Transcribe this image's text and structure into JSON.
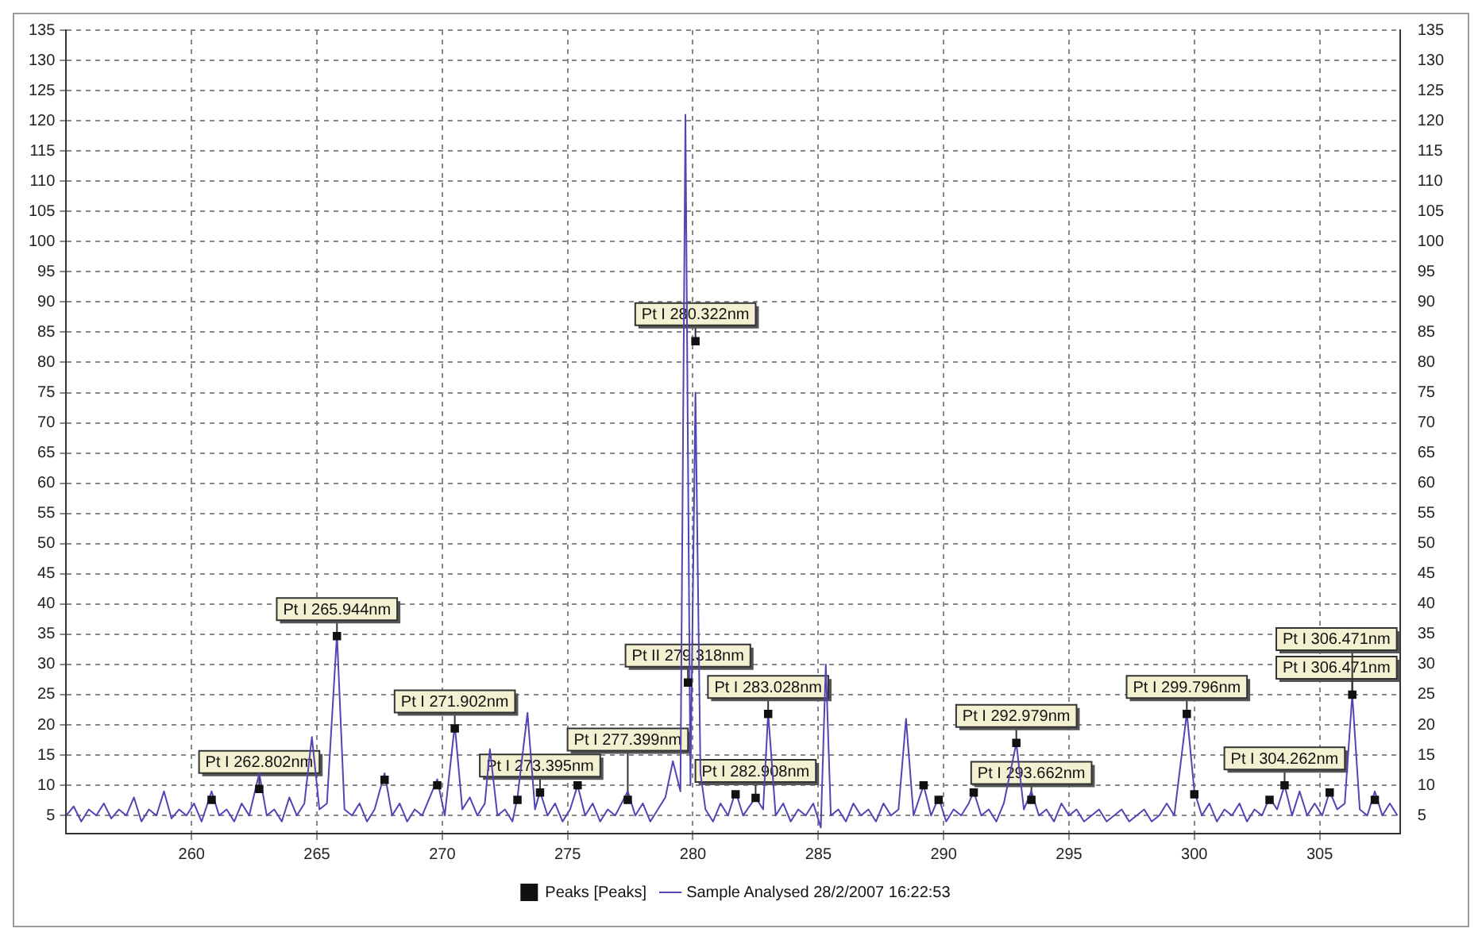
{
  "chart_data": {
    "type": "line",
    "xlim": [
      255,
      308.2
    ],
    "xticks": [
      260,
      265,
      270,
      275,
      280,
      285,
      290,
      295,
      300,
      305
    ],
    "ylim": [
      2,
      135
    ],
    "yticks": [
      5,
      10,
      15,
      20,
      25,
      30,
      35,
      40,
      45,
      50,
      55,
      60,
      65,
      70,
      75,
      80,
      85,
      90,
      95,
      100,
      105,
      110,
      115,
      120,
      125,
      130,
      135
    ],
    "y2lim": [
      2,
      135
    ],
    "y2ticks": [
      5,
      10,
      15,
      20,
      25,
      30,
      35,
      40,
      45,
      50,
      55,
      60,
      65,
      70,
      75,
      80,
      85,
      90,
      95,
      100,
      105,
      110,
      115,
      120,
      125,
      130,
      135
    ],
    "grid": true,
    "legend": "bottom",
    "series": [
      {
        "name": "Peaks [Peaks]",
        "type": "scatter",
        "marker": "square",
        "color": "#111111",
        "x": [
          260.8,
          262.7,
          265.8,
          267.7,
          269.8,
          270.5,
          273.0,
          273.9,
          275.4,
          277.4,
          279.8,
          280.1,
          281.7,
          282.5,
          283.0,
          289.2,
          289.8,
          291.2,
          292.9,
          293.5,
          299.7,
          300.0,
          303.0,
          303.6,
          305.4,
          306.3,
          307.2
        ],
        "values": [
          7.6,
          9.4,
          34.7,
          10.9,
          10,
          19.4,
          7.6,
          8.8,
          10,
          7.6,
          27,
          83.5,
          8.5,
          7.9,
          21.8,
          10,
          7.6,
          8.8,
          17,
          7.6,
          21.8,
          8.5,
          7.6,
          10,
          8.8,
          25,
          7.6
        ]
      },
      {
        "name": "Sample Analysed 28/2/2007 16:22:53",
        "type": "line",
        "color": "#4f45b5",
        "x": [
          255.0,
          255.3,
          255.6,
          255.9,
          256.2,
          256.5,
          256.8,
          257.1,
          257.4,
          257.7,
          258.0,
          258.3,
          258.6,
          258.9,
          259.2,
          259.5,
          259.8,
          260.1,
          260.4,
          260.8,
          261.1,
          261.4,
          261.7,
          262.0,
          262.3,
          262.7,
          263.0,
          263.3,
          263.6,
          263.9,
          264.2,
          264.5,
          264.8,
          265.1,
          265.4,
          265.8,
          266.1,
          266.4,
          266.7,
          267.0,
          267.3,
          267.7,
          268.0,
          268.3,
          268.6,
          268.9,
          269.2,
          269.5,
          269.8,
          270.1,
          270.5,
          270.8,
          271.1,
          271.4,
          271.7,
          271.9,
          272.2,
          272.5,
          272.8,
          273.0,
          273.4,
          273.7,
          273.9,
          274.2,
          274.5,
          274.8,
          275.1,
          275.4,
          275.7,
          276.0,
          276.3,
          276.6,
          276.9,
          277.4,
          277.7,
          278.0,
          278.3,
          278.6,
          278.9,
          279.2,
          279.5,
          279.7,
          279.9,
          280.1,
          280.3,
          280.5,
          280.8,
          281.1,
          281.4,
          281.7,
          282.0,
          282.5,
          282.8,
          283.0,
          283.3,
          283.6,
          283.9,
          284.2,
          284.5,
          284.8,
          285.1,
          285.3,
          285.5,
          285.8,
          286.1,
          286.4,
          286.7,
          287.0,
          287.3,
          287.6,
          287.9,
          288.2,
          288.5,
          288.8,
          289.2,
          289.5,
          289.8,
          290.1,
          290.4,
          290.7,
          291.0,
          291.2,
          291.5,
          291.8,
          292.1,
          292.4,
          292.9,
          293.2,
          293.5,
          293.8,
          294.1,
          294.4,
          294.7,
          295.0,
          295.3,
          295.6,
          295.9,
          296.2,
          296.5,
          296.8,
          297.1,
          297.4,
          297.7,
          298.0,
          298.3,
          298.6,
          298.9,
          299.2,
          299.7,
          300.0,
          300.3,
          300.6,
          300.9,
          301.2,
          301.5,
          301.8,
          302.1,
          302.4,
          302.7,
          303.0,
          303.3,
          303.6,
          303.9,
          304.2,
          304.5,
          304.8,
          305.1,
          305.4,
          305.7,
          306.0,
          306.3,
          306.6,
          306.9,
          307.2,
          307.5,
          307.8,
          308.1
        ],
        "values": [
          5,
          6.5,
          4,
          6,
          5,
          7,
          4.5,
          6,
          5,
          8,
          4,
          6,
          5,
          9,
          4.5,
          6,
          5,
          7,
          4,
          9,
          5,
          6,
          4,
          7,
          5,
          12,
          5,
          6,
          4,
          8,
          5,
          7,
          18,
          6,
          7,
          35,
          6,
          5,
          7,
          4,
          6,
          12,
          5,
          7,
          4,
          6,
          5,
          8,
          11,
          5,
          20,
          6,
          8,
          5,
          7,
          16,
          5,
          6,
          4,
          8,
          22,
          6,
          9,
          5,
          7,
          4,
          6,
          10,
          5,
          7,
          4,
          6,
          5,
          9,
          5,
          7,
          4,
          6,
          8,
          14,
          9,
          121,
          10,
          75,
          12,
          6,
          4,
          7,
          5,
          9,
          5,
          8,
          6,
          22,
          5,
          7,
          4,
          6,
          5,
          7,
          3,
          30,
          5,
          6,
          4,
          7,
          5,
          6,
          4,
          7,
          5,
          6,
          21,
          5,
          10,
          5,
          8,
          4,
          6,
          5,
          7,
          9,
          5,
          6,
          4,
          7,
          17,
          6,
          9,
          5,
          6,
          4,
          7,
          5,
          6,
          4,
          5,
          6,
          4,
          5,
          6,
          4,
          5,
          6,
          4,
          5,
          7,
          5,
          22,
          9,
          5,
          7,
          4,
          6,
          5,
          7,
          4,
          6,
          5,
          8,
          6,
          10,
          5,
          9,
          5,
          7,
          5,
          9,
          6,
          7,
          25,
          6,
          5,
          9,
          5,
          7,
          5
        ]
      }
    ],
    "annotations": [
      {
        "text": "Pt I 265.944nm",
        "x": 265.8,
        "y": 34.7
      },
      {
        "text": "Pt I 262.802nm",
        "x": 262.7,
        "y": 9.4
      },
      {
        "text": "Pt I 271.902nm",
        "x": 270.5,
        "y": 19.4
      },
      {
        "text": "Pt I 273.395nm",
        "x": 273.9,
        "y": 8.8
      },
      {
        "text": "Pt I 277.399nm",
        "x": 277.4,
        "y": 7.6
      },
      {
        "text": "Pt II 279.318nm",
        "x": 279.8,
        "y": 27
      },
      {
        "text": "Pt I 280.322nm",
        "x": 280.1,
        "y": 83.5
      },
      {
        "text": "Pt I 283.028nm",
        "x": 283.0,
        "y": 21.8
      },
      {
        "text": "Pt I 282.908nm",
        "x": 282.5,
        "y": 7.9
      },
      {
        "text": "Pt I 292.979nm",
        "x": 292.9,
        "y": 17
      },
      {
        "text": "Pt I 293.662nm",
        "x": 293.5,
        "y": 7.6
      },
      {
        "text": "Pt I 299.796nm",
        "x": 299.7,
        "y": 21.8
      },
      {
        "text": "Pt I 304.262nm",
        "x": 303.6,
        "y": 10
      },
      {
        "text": "Pt I 306.471nm",
        "x": 306.3,
        "y": 25
      },
      {
        "text": "Pt I 306.471nm",
        "x": 306.3,
        "y": 25
      }
    ]
  }
}
